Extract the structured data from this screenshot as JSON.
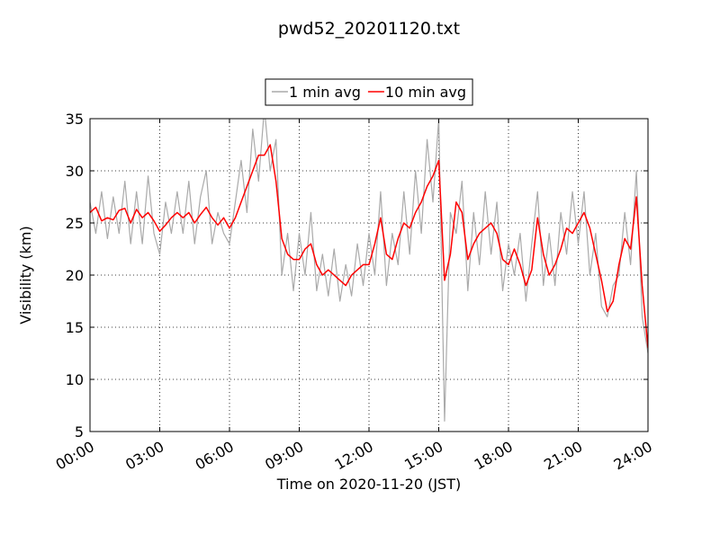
{
  "chart_data": {
    "type": "line",
    "title": "pwd52_20201120.txt",
    "xlabel": "Time on 2020-11-20 (JST)",
    "ylabel": "Visibility (km)",
    "xlim": [
      0,
      24
    ],
    "ylim": [
      5,
      35
    ],
    "xticks": [
      {
        "value": 0,
        "label": "00:00"
      },
      {
        "value": 3,
        "label": "03:00"
      },
      {
        "value": 6,
        "label": "06:00"
      },
      {
        "value": 9,
        "label": "09:00"
      },
      {
        "value": 12,
        "label": "12:00"
      },
      {
        "value": 15,
        "label": "15:00"
      },
      {
        "value": 18,
        "label": "18:00"
      },
      {
        "value": 21,
        "label": "21:00"
      },
      {
        "value": 24,
        "label": "24:00"
      }
    ],
    "yticks": [
      5,
      10,
      15,
      20,
      25,
      30,
      35
    ],
    "grid": true,
    "legend": "top",
    "x": [
      0,
      0.25,
      0.5,
      0.75,
      1,
      1.25,
      1.5,
      1.75,
      2,
      2.25,
      2.5,
      2.75,
      3,
      3.25,
      3.5,
      3.75,
      4,
      4.25,
      4.5,
      4.75,
      5,
      5.25,
      5.5,
      5.75,
      6,
      6.25,
      6.5,
      6.75,
      7,
      7.25,
      7.5,
      7.75,
      8,
      8.25,
      8.5,
      8.75,
      9,
      9.25,
      9.5,
      9.75,
      10,
      10.25,
      10.5,
      10.75,
      11,
      11.25,
      11.5,
      11.75,
      12,
      12.25,
      12.5,
      12.75,
      13,
      13.25,
      13.5,
      13.75,
      14,
      14.25,
      14.5,
      14.75,
      15,
      15.25,
      15.5,
      15.75,
      16,
      16.25,
      16.5,
      16.75,
      17,
      17.25,
      17.5,
      17.75,
      18,
      18.25,
      18.5,
      18.75,
      19,
      19.25,
      19.5,
      19.75,
      20,
      20.25,
      20.5,
      20.75,
      21,
      21.25,
      21.5,
      21.75,
      22,
      22.25,
      22.5,
      22.75,
      23,
      23.25,
      23.5,
      23.75,
      24
    ],
    "series": [
      {
        "name": "1 min avg",
        "color": "#aaaaaa",
        "values": [
          27,
          24,
          28,
          23.5,
          27.5,
          24,
          29,
          23,
          28,
          23,
          29.5,
          24,
          22,
          27,
          24,
          28,
          24,
          29,
          23,
          27.5,
          30,
          23,
          26,
          24,
          23,
          27,
          31,
          26,
          34,
          29,
          36,
          30,
          33,
          20,
          24,
          18.5,
          24,
          20,
          26,
          18.5,
          22,
          18,
          22.5,
          17.5,
          21,
          18,
          23,
          19,
          24,
          20,
          28,
          19,
          24,
          21,
          28,
          22,
          30,
          24,
          33,
          27,
          35,
          6,
          26,
          24,
          29,
          18.5,
          26,
          21,
          28,
          22,
          27,
          18.5,
          23,
          20,
          24,
          17.5,
          23,
          28,
          19,
          24,
          19,
          26,
          22,
          28,
          23,
          28,
          20,
          24,
          17,
          16,
          19,
          20,
          26,
          21,
          30,
          16,
          12.5
        ]
      },
      {
        "name": "10 min avg",
        "color": "#ff0000",
        "values": [
          26,
          26.5,
          25.2,
          25.5,
          25.3,
          26.2,
          26.4,
          25,
          26.3,
          25.5,
          26,
          25.2,
          24.2,
          24.8,
          25.5,
          26,
          25.5,
          26,
          25,
          25.8,
          26.5,
          25.5,
          24.8,
          25.5,
          24.5,
          25.5,
          27,
          28.5,
          30,
          31.5,
          31.5,
          32.5,
          29,
          23.5,
          22,
          21.5,
          21.5,
          22.5,
          23,
          21,
          20,
          20.5,
          20,
          19.5,
          19,
          20,
          20.5,
          21,
          21,
          23,
          25.5,
          22,
          21.5,
          23.5,
          25,
          24.5,
          26,
          27,
          28.5,
          29.5,
          31,
          19.5,
          22,
          27,
          26,
          21.5,
          23,
          24,
          24.5,
          25,
          24,
          21.5,
          21,
          22.5,
          21,
          19,
          20.5,
          25.5,
          22,
          20,
          21,
          22.5,
          24.5,
          24,
          25,
          26,
          24.5,
          22,
          19.5,
          16.5,
          17.5,
          21,
          23.5,
          22.5,
          27.5,
          19,
          13
        ]
      }
    ]
  }
}
